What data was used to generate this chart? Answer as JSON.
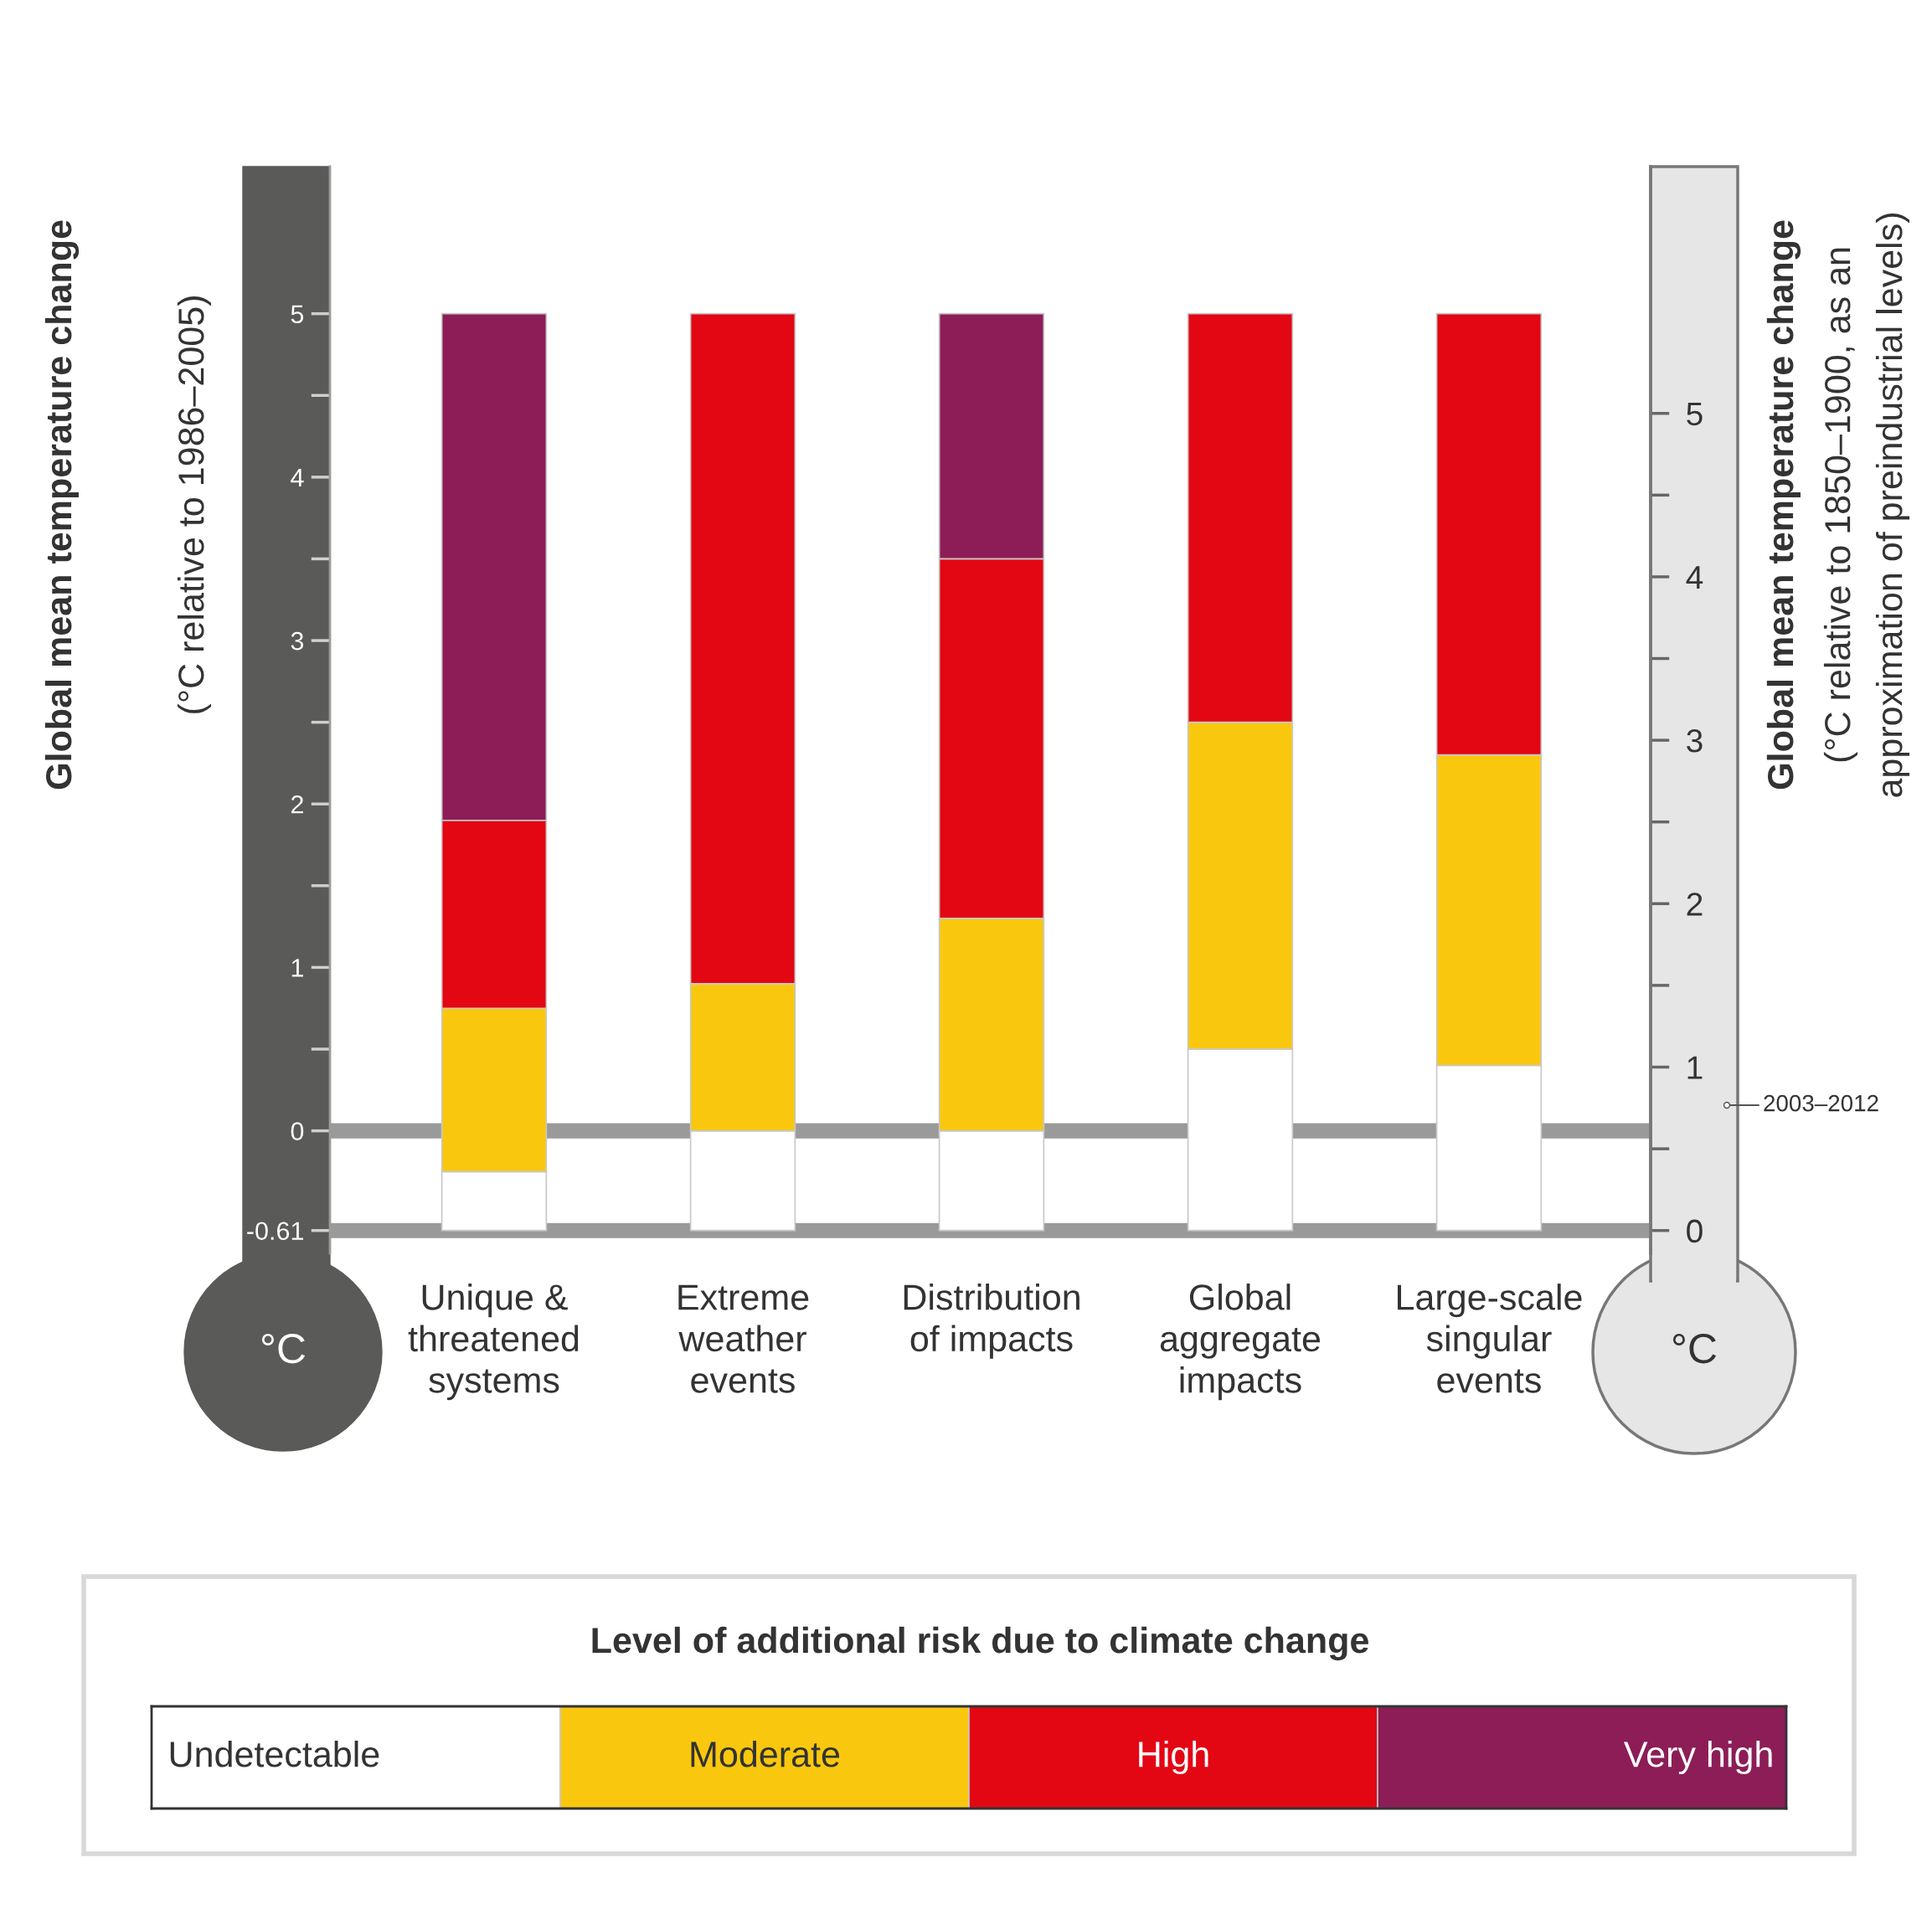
{
  "chart_data": {
    "type": "bar",
    "stacked": true,
    "categories": [
      "Unique &\nthreatened\nsystems",
      "Extreme\nweather\nevents",
      "Distribution\nof impacts",
      "Global\naggregate\nimpacts",
      "Large-scale\nsingular\nevents"
    ],
    "series": [
      {
        "name": "Undetectable",
        "color": "#ffffff",
        "axis": "y2",
        "values": [
          0.36,
          0.61,
          0.61,
          1.11,
          1.01
        ]
      },
      {
        "name": "Moderate",
        "color": "#f9c80e",
        "axis": "y2",
        "values": [
          1.0,
          0.9,
          1.3,
          2.0,
          1.9
        ]
      },
      {
        "name": "High",
        "color": "#e30613",
        "axis": "y2",
        "values": [
          1.15,
          4.1,
          2.2,
          2.5,
          2.7
        ]
      },
      {
        "name": "Very high",
        "color": "#8c1d57",
        "axis": "y2",
        "values": [
          3.1,
          null,
          1.5,
          null,
          null
        ]
      }
    ],
    "ylabel": "Global mean temperature change\n(°C relative to 1986–2005)",
    "y2label": "Global mean temperature change\n(°C relative to 1850–1900, as an\napproximation of preindustrial levels)",
    "legend_title": "Level of additional risk due to climate change",
    "legend": "bottom",
    "ylim": [
      -0.75,
      5.9
    ],
    "yticks": [
      {
        "value": -0.61,
        "label": "-0.61"
      },
      0,
      1,
      2,
      3,
      4,
      5
    ],
    "y2lim": [
      -0.14,
      6.51
    ],
    "y2ticks": [
      0,
      1,
      2,
      3,
      4,
      5
    ],
    "ref_lines": [
      {
        "axis": "y",
        "value": 0,
        "color": "#9a9a9a"
      },
      {
        "axis": "y",
        "value": -0.61,
        "color": "#9a9a9a"
      }
    ],
    "annotations": [
      "2003–2012",
      "°C",
      "°C"
    ]
  }
}
